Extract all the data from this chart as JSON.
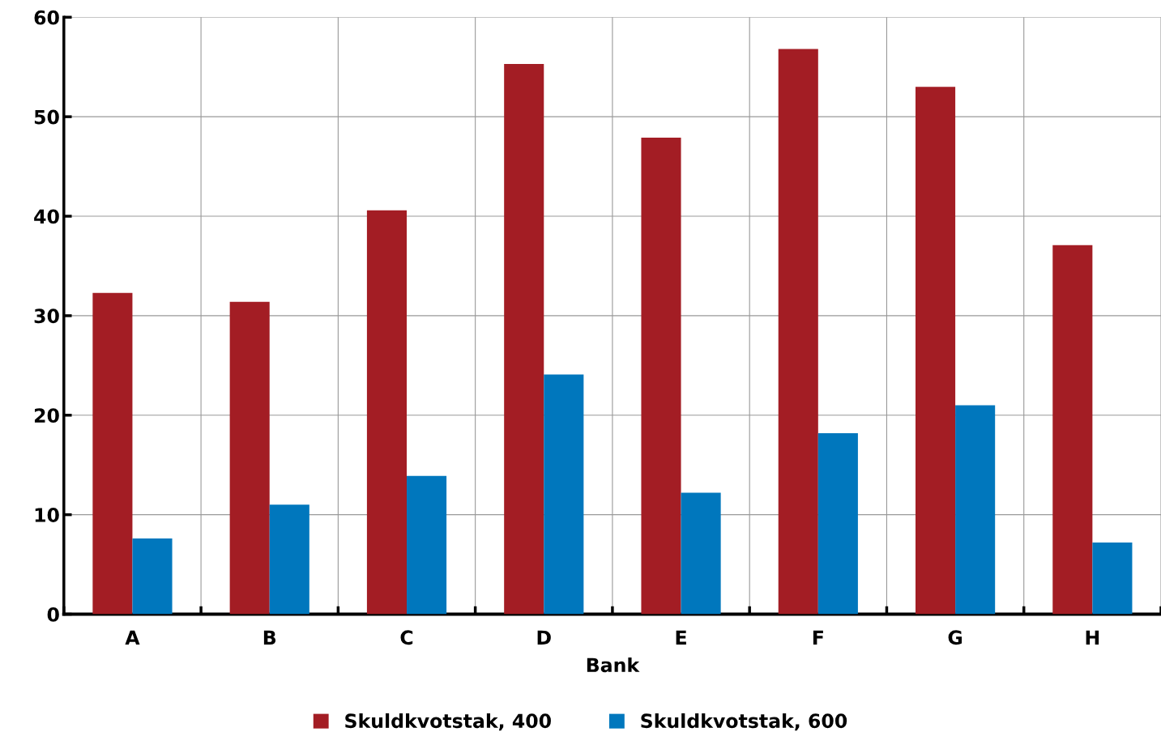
{
  "chart_data": {
    "type": "bar",
    "xlabel": "Bank",
    "categories": [
      "A",
      "B",
      "C",
      "D",
      "E",
      "F",
      "G",
      "H"
    ],
    "series": [
      {
        "name": "Skuldkvotstak, 400",
        "color": "#a31d24",
        "values": [
          32.3,
          31.4,
          40.6,
          55.3,
          47.9,
          56.8,
          53.0,
          37.1
        ]
      },
      {
        "name": "Skuldkvotstak, 600",
        "color": "#0077bd",
        "values": [
          7.6,
          11.0,
          13.9,
          24.1,
          12.2,
          18.2,
          21.0,
          7.2
        ]
      }
    ],
    "ylim": [
      0,
      60
    ],
    "yticks": [
      0,
      10,
      20,
      30,
      40,
      50,
      60
    ],
    "grid": true,
    "legend": "bottom"
  }
}
